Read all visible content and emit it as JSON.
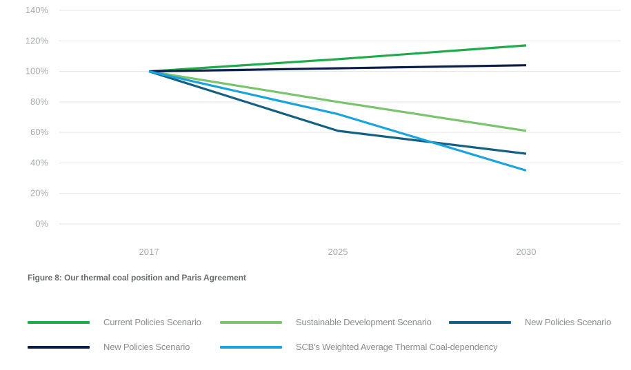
{
  "chart_data": {
    "type": "line",
    "x": [
      "2017",
      "2025",
      "2030"
    ],
    "ylim": [
      0,
      140
    ],
    "yticks": [
      "0%",
      "20%",
      "40%",
      "60%",
      "80%",
      "100%",
      "120%",
      "140%"
    ],
    "grid": true,
    "legend_position": "bottom",
    "series": [
      {
        "name": "Current Policies Scenario",
        "color": "#1faa4b",
        "values": [
          100,
          108,
          117
        ]
      },
      {
        "name": "Sustainable Development Scenario",
        "color": "#7ac46e",
        "values": [
          100,
          80,
          61
        ]
      },
      {
        "name": "New Policies Scenario",
        "color": "#145f84",
        "values": [
          100,
          61,
          46
        ]
      },
      {
        "name": "New Policies Scenario",
        "color": "#0b1e4a",
        "values": [
          100,
          102,
          104
        ]
      },
      {
        "name": "SCB's Weighted Average Thermal Coal-dependency",
        "color": "#1ba3dc",
        "values": [
          100,
          72,
          35
        ]
      }
    ]
  },
  "caption": "Figure 8: Our thermal coal position and Paris Agreement"
}
